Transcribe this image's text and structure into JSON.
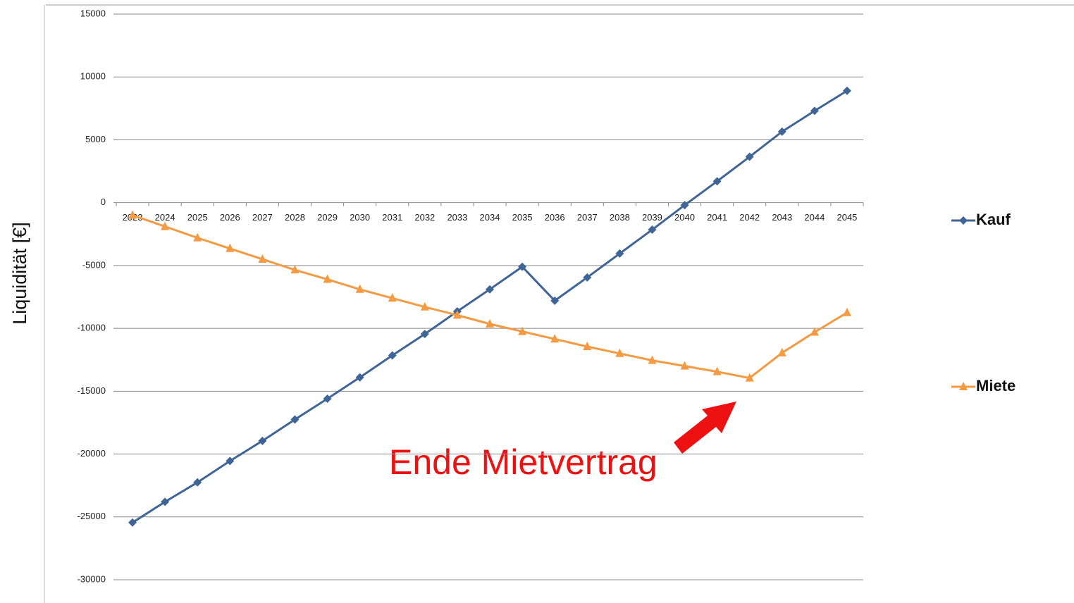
{
  "chart_data": {
    "type": "line",
    "y_label": "Liquidität [€]",
    "annotation": "Ende Mietvertrag",
    "categories": [
      "2023",
      "2024",
      "2025",
      "2026",
      "2027",
      "2028",
      "2029",
      "2030",
      "2031",
      "2032",
      "2033",
      "2034",
      "2035",
      "2036",
      "2037",
      "2038",
      "2039",
      "2040",
      "2041",
      "2042",
      "2043",
      "2044",
      "2045"
    ],
    "series": [
      {
        "name": "Kauf",
        "color": "#3f6597",
        "marker": "diamond",
        "values": [
          -25450,
          -23800,
          -22250,
          -20550,
          -18950,
          -17250,
          -15600,
          -13900,
          -12150,
          -10450,
          -8650,
          -6900,
          -5100,
          -7800,
          -5950,
          -4050,
          -2150,
          -200,
          1700,
          3650,
          5650,
          7300,
          8900
        ]
      },
      {
        "name": "Miete",
        "color": "#f39a42",
        "marker": "triangle",
        "values": [
          -1000,
          -1900,
          -2800,
          -3650,
          -4500,
          -5350,
          -6100,
          -6900,
          -7600,
          -8300,
          -8950,
          -9650,
          -10250,
          -10850,
          -11450,
          -12000,
          -12550,
          -13000,
          -13450,
          -13950,
          -11950,
          -10300,
          -8750
        ]
      }
    ],
    "ylim": [
      -30000,
      15000
    ],
    "yticks": [
      -30000,
      -25000,
      -20000,
      -15000,
      -10000,
      -5000,
      0,
      5000,
      10000,
      15000
    ],
    "grid": true,
    "legend": "right"
  }
}
